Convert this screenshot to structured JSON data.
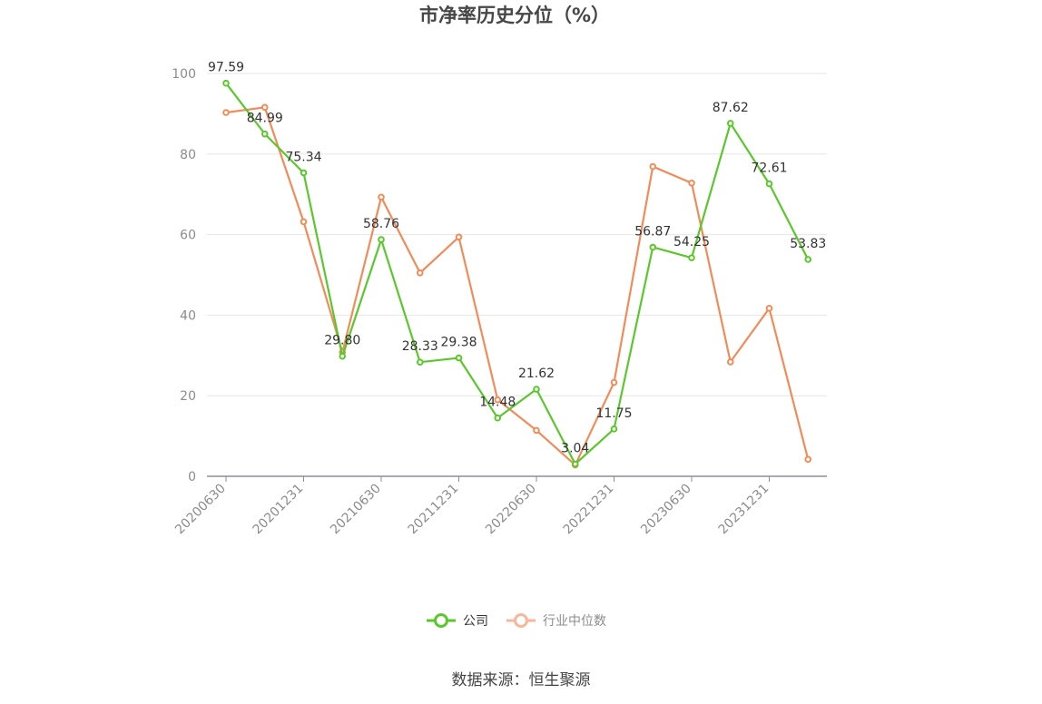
{
  "chart_data": {
    "type": "line",
    "title": "市净率历史分位（%）",
    "ylim": [
      0,
      100
    ],
    "y_ticks": [
      0,
      20,
      40,
      60,
      80,
      100
    ],
    "x_tick_labels": [
      "20200630",
      "20201231",
      "20210630",
      "20211231",
      "20220630",
      "20221231",
      "20230630",
      "20231231"
    ],
    "x": [
      "20200630",
      "20200930",
      "20201231",
      "20210331",
      "20210630",
      "20210930",
      "20211231",
      "20220331",
      "20220630",
      "20220930",
      "20221231",
      "20230331",
      "20230630",
      "20230930",
      "20231231",
      "20240331"
    ],
    "grid": true,
    "legend_position": "bottom",
    "series": [
      {
        "name": "公司",
        "color": "#5ac82d",
        "values": [
          97.59,
          84.99,
          75.34,
          29.8,
          58.76,
          28.33,
          29.38,
          14.48,
          21.62,
          3.04,
          11.75,
          56.87,
          54.25,
          87.62,
          72.61,
          53.83
        ],
        "labels": [
          "97.59",
          "84.99",
          "75.34",
          "29.80",
          "58.76",
          "28.33",
          "29.38",
          "14.48",
          "21.62",
          "3.04",
          "11.75",
          "56.87",
          "54.25",
          "87.62",
          "72.61",
          "53.83"
        ]
      },
      {
        "name": "行业中位数",
        "color": "#f08c5a",
        "values": [
          90.3,
          91.6,
          63.2,
          30.8,
          69.3,
          50.5,
          59.4,
          19.0,
          11.4,
          2.8,
          23.3,
          76.9,
          72.8,
          28.4,
          41.7,
          4.2
        ]
      }
    ]
  },
  "legend": {
    "company_label": "公司",
    "industry_label": "行业中位数"
  },
  "source_text": "数据来源：恒生聚源"
}
